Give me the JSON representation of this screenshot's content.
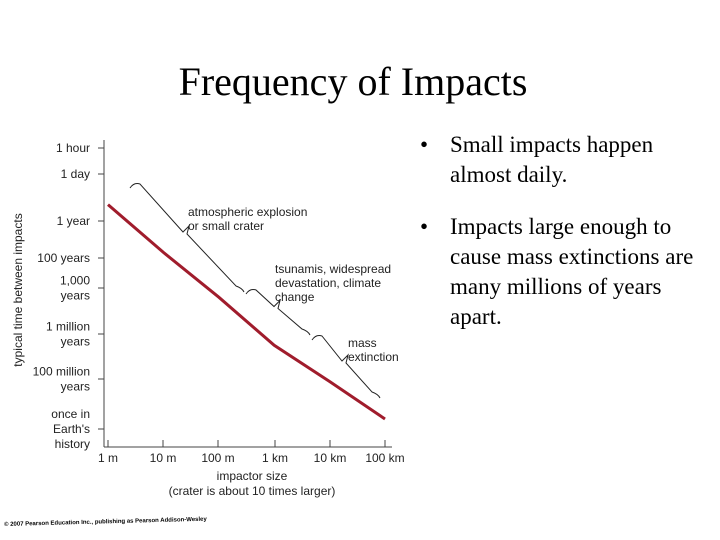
{
  "slide": {
    "title": "Frequency of Impacts",
    "bullets": [
      {
        "text": "Small impacts happen almost daily."
      },
      {
        "text": "Impacts large enough to cause mass extinctions are many millions of years apart."
      }
    ],
    "bullet_glyph": "•",
    "copyright": "© 2007 Pearson Education Inc., publishing as Pearson Addison-Wesley"
  },
  "chart_data": {
    "type": "line",
    "title": "",
    "ylabel": "typical time between impacts",
    "xlabel": "impactor size",
    "xlabel_sub": "(crater is about 10 times larger)",
    "x_categories": [
      "1 m",
      "10 m",
      "100 m",
      "1 km",
      "10 km",
      "100 km"
    ],
    "y_ticks": [
      {
        "lines": [
          "1 hour"
        ]
      },
      {
        "lines": [
          "1 day"
        ]
      },
      {
        "lines": [
          "1 year"
        ]
      },
      {
        "lines": [
          "100 years"
        ]
      },
      {
        "lines": [
          "1,000",
          "years"
        ]
      },
      {
        "lines": [
          "1 million",
          "years"
        ]
      },
      {
        "lines": [
          "100 million",
          "years"
        ]
      },
      {
        "lines": [
          "once in",
          "Earth's",
          "history"
        ]
      }
    ],
    "series": [
      {
        "name": "impact frequency",
        "color": "#a01c2c",
        "x_log10_m": [
          0.0,
          1.0,
          2.0,
          3.0,
          4.0,
          5.0
        ],
        "y_tick_position": [
          1.65,
          2.85,
          4.2,
          5.25,
          6.05,
          6.8
        ]
      }
    ],
    "annotations": [
      {
        "lines": [
          "atmospheric explosion",
          "or small crater"
        ]
      },
      {
        "lines": [
          "tsunamis, widespread",
          "devastation, climate",
          "change"
        ]
      },
      {
        "lines": [
          "mass",
          "extinction"
        ]
      }
    ]
  }
}
